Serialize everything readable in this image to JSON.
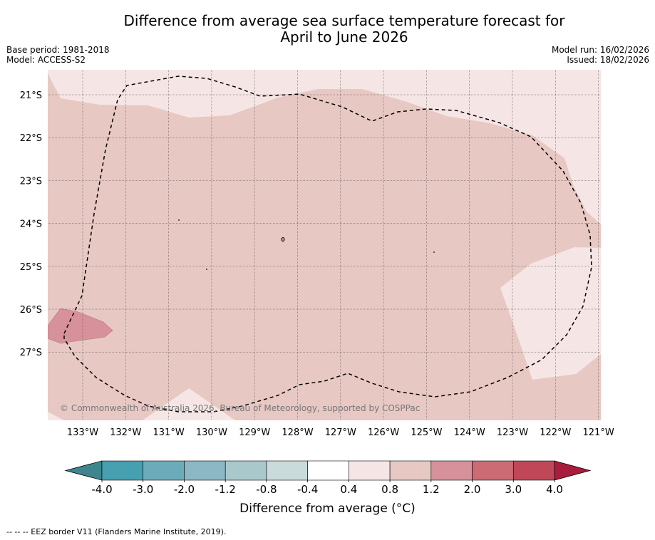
{
  "title": {
    "line1": "Difference from average sea surface temperature forecast for",
    "line2": "April to June 2026"
  },
  "meta": {
    "base_period": "Base period: 1981-2018",
    "model": "Model: ACCESS-S2",
    "model_run": "Model run: 16/02/2026",
    "issued": "Issued: 18/02/2026"
  },
  "map": {
    "lat_labels": [
      "21°S",
      "22°S",
      "23°S",
      "24°S",
      "25°S",
      "26°S",
      "27°S"
    ],
    "lon_labels": [
      "133°W",
      "132°W",
      "131°W",
      "130°W",
      "129°W",
      "128°W",
      "127°W",
      "126°W",
      "125°W",
      "124°W",
      "123°W",
      "122°W",
      "121°W"
    ],
    "credit": "© Commonwealth of Australia 2026, Bureau of Meteorology, supported by COSPPac",
    "anomaly_regions": [
      {
        "range": "0.4 to 0.8",
        "color": "#f5e6e5"
      },
      {
        "range": "0.8 to 1.2",
        "color": "#e8c8c3"
      },
      {
        "range": "1.2 to 2.0",
        "color": "#d6919a"
      }
    ]
  },
  "colorbar": {
    "ticks": [
      "-4.0",
      "-3.0",
      "-2.0",
      "-1.2",
      "-0.8",
      "-0.4",
      "0.4",
      "0.8",
      "1.2",
      "2.0",
      "3.0",
      "4.0"
    ],
    "colors": [
      "#46a0b0",
      "#6cacba",
      "#8bb8c4",
      "#a9c8cc",
      "#cadbdc",
      "#ffffff",
      "#f5e6e5",
      "#e8c8c3",
      "#d6919a",
      "#cc6b74",
      "#bf4758"
    ],
    "extend_low_color": "#3e8590",
    "extend_high_color": "#a81c3c",
    "label": "Difference from average (°C)"
  },
  "footnote": "--  --  -- EEZ border V11 (Flanders Marine Institute, 2019)."
}
